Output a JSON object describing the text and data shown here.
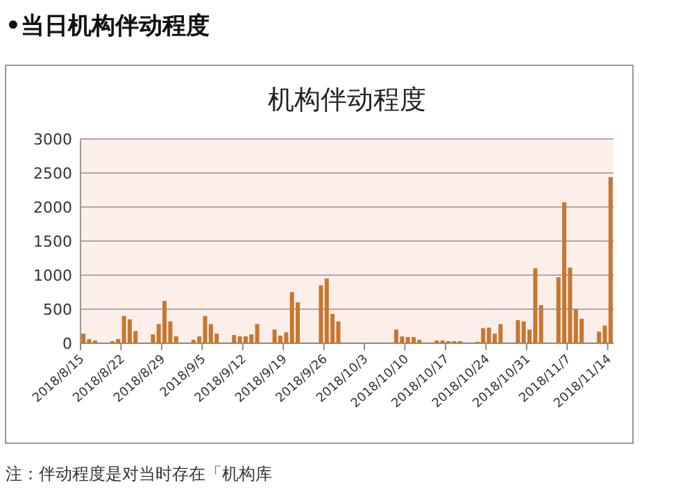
{
  "chart_data": {
    "type": "bar",
    "title": "•当日机构伴动程度",
    "subtitle": "机构伴动程度",
    "annotations": [
      "注：伴动程度是对当时存在「机构库"
    ],
    "x": [
      "2018-08-15",
      "2018-08-16",
      "2018-08-17",
      "2018-08-20",
      "2018-08-21",
      "2018-08-22",
      "2018-08-23",
      "2018-08-24",
      "2018-08-27",
      "2018-08-28",
      "2018-08-29",
      "2018-08-30",
      "2018-08-31",
      "2018-09-03",
      "2018-09-04",
      "2018-09-05",
      "2018-09-06",
      "2018-09-07",
      "2018-09-10",
      "2018-09-11",
      "2018-09-12",
      "2018-09-13",
      "2018-09-14",
      "2018-09-17",
      "2018-09-18",
      "2018-09-19",
      "2018-09-20",
      "2018-09-21",
      "2018-09-25",
      "2018-09-26",
      "2018-09-27",
      "2018-09-28",
      "2018-10-08",
      "2018-10-09",
      "2018-10-10",
      "2018-10-11",
      "2018-10-12",
      "2018-10-15",
      "2018-10-16",
      "2018-10-17",
      "2018-10-18",
      "2018-10-19",
      "2018-10-22",
      "2018-10-23",
      "2018-10-24",
      "2018-10-25",
      "2018-10-26",
      "2018-10-29",
      "2018-10-30",
      "2018-10-31",
      "2018-11-01",
      "2018-11-02",
      "2018-11-05",
      "2018-11-06",
      "2018-11-07",
      "2018-11-08",
      "2018-11-09",
      "2018-11-12",
      "2018-11-13",
      "2018-11-14"
    ],
    "series": [
      {
        "color": "#c8762f",
        "values": [
          140,
          60,
          40,
          30,
          60,
          400,
          350,
          180,
          130,
          280,
          620,
          320,
          100,
          50,
          100,
          400,
          280,
          140,
          120,
          100,
          100,
          130,
          280,
          200,
          110,
          160,
          750,
          600,
          850,
          950,
          430,
          320,
          200,
          100,
          90,
          90,
          50,
          40,
          40,
          30,
          30,
          30,
          20,
          220,
          230,
          140,
          280,
          340,
          320,
          200,
          1100,
          560,
          970,
          2070,
          1110,
          500,
          360,
          170,
          260,
          2440
        ]
      }
    ],
    "xlim": [
      "2018-08-15",
      "2018-11-15"
    ],
    "xticks": [
      {
        "value": "2018-08-15",
        "label": "2018/8/15"
      },
      {
        "value": "2018-08-22",
        "label": "2018/8/22"
      },
      {
        "value": "2018-08-29",
        "label": "2018/8/29"
      },
      {
        "value": "2018-09-05",
        "label": "2018/9/5"
      },
      {
        "value": "2018-09-12",
        "label": "2018/9/12"
      },
      {
        "value": "2018-09-19",
        "label": "2018/9/19"
      },
      {
        "value": "2018-09-26",
        "label": "2018/9/26"
      },
      {
        "value": "2018-10-03",
        "label": "2018/10/3"
      },
      {
        "value": "2018-10-10",
        "label": "2018/10/10"
      },
      {
        "value": "2018-10-17",
        "label": "2018/10/17"
      },
      {
        "value": "2018-10-24",
        "label": "2018/10/24"
      },
      {
        "value": "2018-10-31",
        "label": "2018/10/31"
      },
      {
        "value": "2018-11-07",
        "label": "2018/11/7"
      },
      {
        "value": "2018-11-14",
        "label": "2018/11/14"
      }
    ],
    "ylim": [
      0,
      3000
    ],
    "yticks": [
      0,
      500,
      1000,
      1500,
      2000,
      2500,
      3000
    ],
    "grid": "y"
  }
}
